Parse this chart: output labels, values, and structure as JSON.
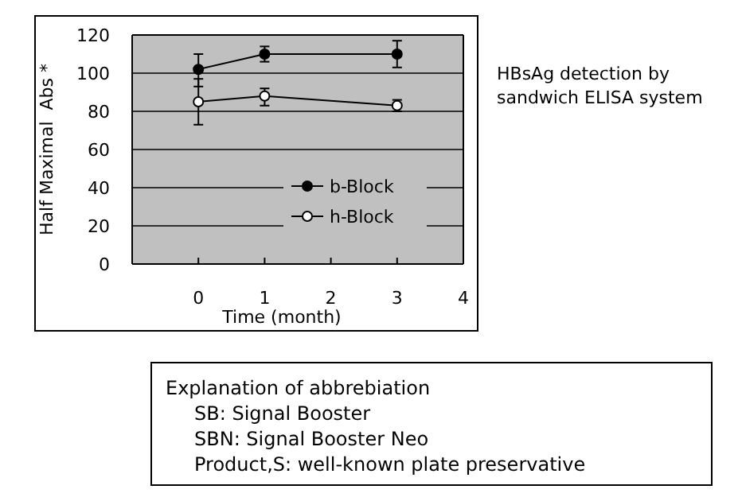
{
  "chart_data": {
    "type": "line",
    "xlabel": "Time (month)",
    "ylabel": "Half Maximal  Abs *",
    "x": [
      0,
      1,
      3
    ],
    "series": [
      {
        "name": "b-Block",
        "color": "#000000",
        "values": [
          102,
          110,
          110
        ],
        "errors": [
          [
            93,
            110
          ],
          [
            106,
            114
          ],
          [
            103,
            117
          ]
        ]
      },
      {
        "name": "h-Block",
        "color": "#000000",
        "values": [
          85,
          88,
          83
        ],
        "errors": [
          [
            73,
            97
          ],
          [
            83,
            92
          ],
          [
            80,
            86
          ]
        ]
      }
    ],
    "xlim": [
      -1,
      4
    ],
    "xticks": [
      0,
      1,
      2,
      3,
      4
    ],
    "ylim": [
      0,
      120
    ],
    "yticks": [
      0,
      20,
      40,
      60,
      80,
      100,
      120
    ],
    "grid": "y",
    "legend": "right",
    "marker": "circle",
    "line_style": "solid",
    "annotations": [
      "HBsAg detection by sandwich ELISA system",
      "Explanation of abbrebiation",
      "SB: Signal Booster",
      "SBN: Signal Booster Neo",
      "Product,S: well-known plate preservative"
    ]
  }
}
